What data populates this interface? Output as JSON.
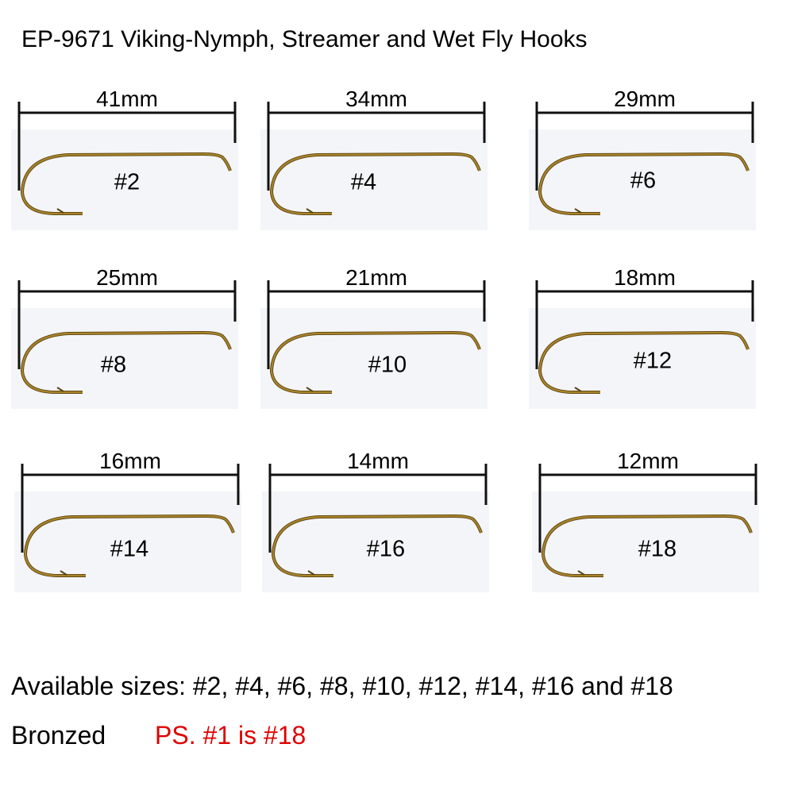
{
  "title": "EP-9671 Viking-Nymph, Streamer and Wet Fly Hooks",
  "hooks": [
    {
      "size": "#2",
      "length": "41mm"
    },
    {
      "size": "#4",
      "length": "34mm"
    },
    {
      "size": "#6",
      "length": "29mm"
    },
    {
      "size": "#8",
      "length": "25mm"
    },
    {
      "size": "#10",
      "length": "21mm"
    },
    {
      "size": "#12",
      "length": "18mm"
    },
    {
      "size": "#14",
      "length": "16mm"
    },
    {
      "size": "#16",
      "length": "14mm"
    },
    {
      "size": "#18",
      "length": "12mm"
    }
  ],
  "available_sizes": "Available sizes: #2, #4, #6, #8, #10, #12, #14, #16 and #18",
  "finish": "Bronzed",
  "note": "PS. #1 is #18",
  "colors": {
    "hook": "#a8842a",
    "note": "#e00000"
  }
}
